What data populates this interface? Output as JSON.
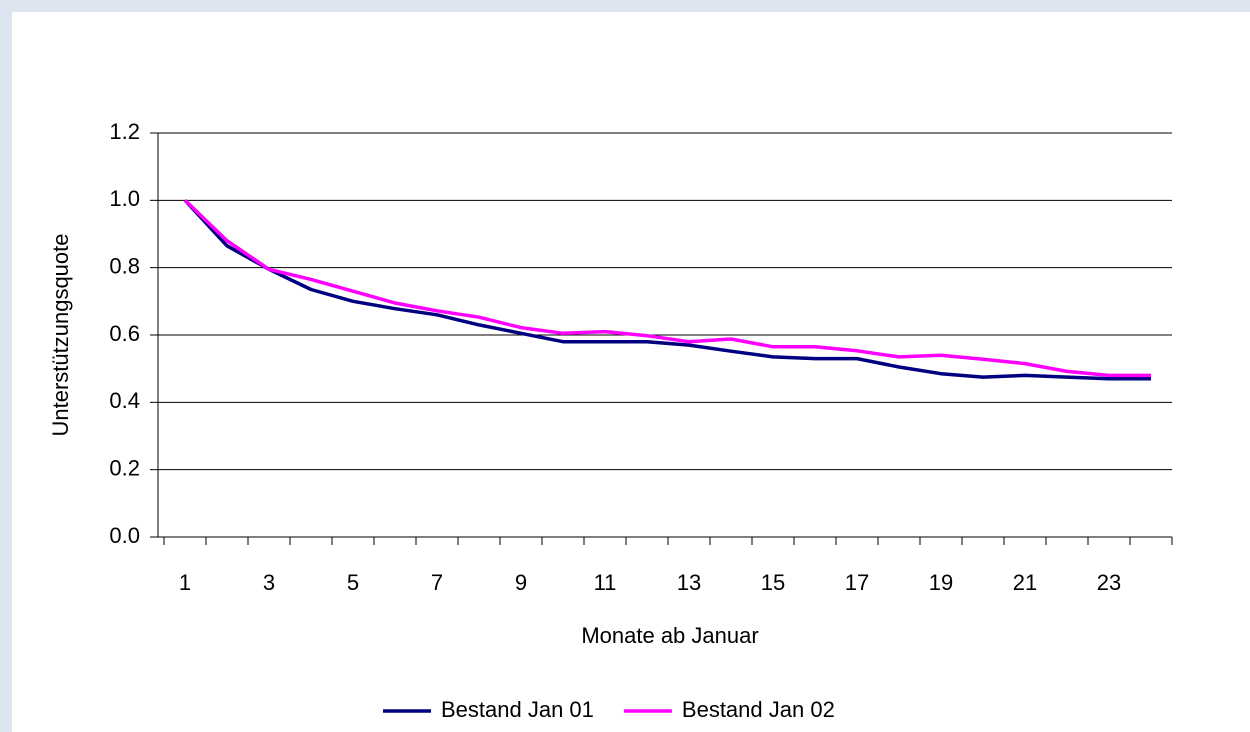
{
  "chart_data": {
    "type": "line",
    "y_label": "Unterstützungsquote",
    "x_label": "Monate ab Januar",
    "categories": [
      "1",
      null,
      "3",
      null,
      "5",
      null,
      "7",
      null,
      "9",
      null,
      "11",
      null,
      "13",
      null,
      "15",
      null,
      "17",
      null,
      "19",
      null,
      "21",
      null,
      "23",
      null
    ],
    "series": [
      {
        "name": "Bestand Jan 01",
        "color": "#000080",
        "values": [
          1.0,
          0.865,
          0.795,
          0.735,
          0.7,
          0.678,
          0.66,
          0.63,
          0.605,
          0.58,
          0.58,
          0.58,
          0.57,
          0.552,
          0.535,
          0.53,
          0.53,
          0.505,
          0.485,
          0.475,
          0.48,
          0.475,
          0.47,
          0.47
        ]
      },
      {
        "name": "Bestand Jan 02",
        "color": "#ff00ff",
        "values": [
          1.0,
          0.88,
          0.795,
          0.765,
          0.73,
          0.695,
          0.672,
          0.653,
          0.622,
          0.605,
          0.61,
          0.598,
          0.58,
          0.588,
          0.565,
          0.565,
          0.553,
          0.535,
          0.54,
          0.528,
          0.515,
          0.492,
          0.48,
          0.48
        ]
      }
    ],
    "ylim": [
      0,
      1.2
    ],
    "yticks": [
      {
        "value": 0,
        "label": "0.0"
      },
      0.2,
      0.4,
      0.6,
      0.8,
      {
        "value": 1,
        "label": "1.0"
      },
      1.2
    ],
    "grid": true,
    "legend": "bottom"
  }
}
